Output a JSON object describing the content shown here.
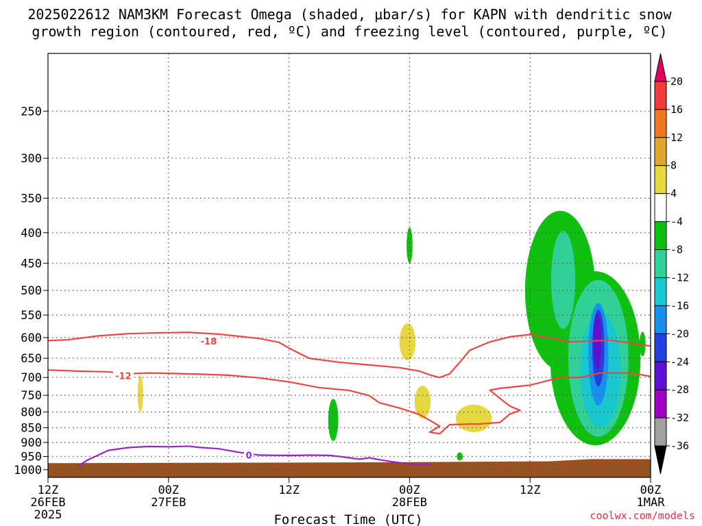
{
  "title_line1": "2025022612 NAM3KM Forecast Omega (shaded, μbar/s) for KAPN with dendritic snow",
  "title_line2": "growth region (contoured, red, ºC) and freezing level (contoured, purple, ºC)",
  "credit": "coolwx.com/models",
  "chart_data": {
    "type": "time-height cross section",
    "xlabel": "Forecast Time (UTC)",
    "x_ticks": [
      {
        "lines": [
          "12Z",
          "26FEB",
          "2025"
        ],
        "hour": 0
      },
      {
        "lines": [
          "00Z",
          "27FEB"
        ],
        "hour": 12
      },
      {
        "lines": [
          "12Z"
        ],
        "hour": 24
      },
      {
        "lines": [
          "00Z",
          "28FEB"
        ],
        "hour": 36
      },
      {
        "lines": [
          "12Z"
        ],
        "hour": 48
      },
      {
        "lines": [
          "00Z",
          "1MAR"
        ],
        "hour": 60
      }
    ],
    "xlim": [
      0,
      60
    ],
    "ylabel": "",
    "y_ticks": [
      250,
      300,
      350,
      400,
      450,
      500,
      550,
      600,
      650,
      700,
      750,
      800,
      850,
      900,
      950,
      1000
    ],
    "ylim": [
      1030,
      200
    ],
    "grid": true,
    "colorbar": {
      "labels": [
        "20",
        "16",
        "12",
        "8",
        "4",
        "-4",
        "-8",
        "-12",
        "-16",
        "-20",
        "-24",
        "-28",
        "-32",
        "-36"
      ],
      "colors": [
        "#e0005e",
        "#f03c3c",
        "#f07820",
        "#e0a830",
        "#e8d840",
        "#ffffff",
        "#10c010",
        "#30d098",
        "#18c8d0",
        "#1890f0",
        "#2040e0",
        "#6010d0",
        "#a000c0",
        "#a0a0a0",
        "#000000"
      ]
    },
    "colors": {
      "dgz": "#ee4444",
      "freezing": "#9922cc",
      "terrain": "#99511f"
    },
    "contours": [
      {
        "name": "dgz_-18",
        "label": "-18",
        "color": "#ee4444",
        "points": [
          [
            0,
            607
          ],
          [
            2,
            605
          ],
          [
            5,
            596
          ],
          [
            8,
            591
          ],
          [
            11,
            589
          ],
          [
            14,
            588
          ],
          [
            17,
            592
          ],
          [
            19,
            597
          ],
          [
            21,
            602
          ],
          [
            23,
            611
          ],
          [
            24,
            625
          ],
          [
            26,
            650
          ],
          [
            29,
            660
          ],
          [
            32,
            667
          ],
          [
            35,
            674
          ],
          [
            37,
            683
          ],
          [
            38,
            693
          ],
          [
            39,
            700
          ],
          [
            40,
            690
          ],
          [
            41,
            660
          ],
          [
            42,
            630
          ],
          [
            44,
            610
          ],
          [
            46,
            598
          ],
          [
            48,
            593
          ],
          [
            49,
            596
          ],
          [
            51,
            605
          ],
          [
            52,
            610
          ],
          [
            54,
            608
          ],
          [
            56,
            606
          ],
          [
            58,
            613
          ],
          [
            60,
            620
          ]
        ],
        "label_at": [
          16,
          608
        ]
      },
      {
        "name": "dgz_-12",
        "label": "-12",
        "color": "#ee4444",
        "points": [
          [
            0,
            680
          ],
          [
            3,
            683
          ],
          [
            6,
            685
          ],
          [
            8,
            690
          ],
          [
            10,
            688
          ],
          [
            12,
            689
          ],
          [
            15,
            691
          ],
          [
            18,
            694
          ],
          [
            21,
            701
          ],
          [
            24,
            712
          ],
          [
            27,
            728
          ],
          [
            30,
            736
          ],
          [
            32,
            751
          ],
          [
            33,
            772
          ],
          [
            35,
            788
          ],
          [
            37,
            808
          ],
          [
            38,
            826
          ],
          [
            39,
            845
          ],
          [
            38,
            865
          ],
          [
            39,
            870
          ],
          [
            40,
            840
          ],
          [
            42,
            838
          ],
          [
            43,
            838
          ],
          [
            45,
            833
          ],
          [
            46,
            806
          ],
          [
            47,
            795
          ],
          [
            46,
            782
          ],
          [
            45,
            759
          ],
          [
            44,
            735
          ],
          [
            45,
            730
          ],
          [
            48,
            721
          ],
          [
            51,
            700
          ],
          [
            53,
            700
          ],
          [
            55,
            688
          ],
          [
            58,
            688
          ],
          [
            60,
            697
          ]
        ],
        "label_at": [
          7.5,
          695
        ]
      },
      {
        "name": "freezing_0",
        "label": "0",
        "color": "#9922cc",
        "points": [
          [
            3,
            985
          ],
          [
            4,
            962
          ],
          [
            6,
            928
          ],
          [
            8,
            918
          ],
          [
            10,
            914
          ],
          [
            12,
            915
          ],
          [
            14,
            913
          ],
          [
            15,
            917
          ],
          [
            17,
            922
          ],
          [
            19,
            935
          ],
          [
            21,
            945
          ],
          [
            23,
            946
          ],
          [
            25,
            946
          ],
          [
            26,
            945
          ],
          [
            28,
            946
          ],
          [
            29,
            950
          ],
          [
            31,
            960
          ],
          [
            32,
            955
          ],
          [
            33,
            962
          ],
          [
            34,
            968
          ],
          [
            36,
            978
          ],
          [
            38,
            980
          ]
        ],
        "label_at": [
          20,
          945
        ]
      }
    ],
    "omega_blobs": [
      {
        "value": "4 to 8",
        "color": "#e8d840",
        "center": [
          9.2,
          745
        ],
        "extent": [
          0.2,
          55
        ]
      },
      {
        "value": "4 to 8",
        "color": "#e8d840",
        "center": [
          35.8,
          610
        ],
        "extent": [
          0.8,
          45
        ]
      },
      {
        "value": "4 to 8",
        "color": "#e8d840",
        "center": [
          37.3,
          770
        ],
        "extent": [
          0.8,
          50
        ]
      },
      {
        "value": "4 to 8",
        "color": "#e8d840",
        "center": [
          42.4,
          820
        ],
        "extent": [
          1.8,
          45
        ]
      },
      {
        "value": "-4 to -8",
        "color": "#10c010",
        "center": [
          36.0,
          420
        ],
        "extent": [
          0.3,
          30
        ]
      },
      {
        "value": "-4 to -8",
        "color": "#10c010",
        "center": [
          28.4,
          825
        ],
        "extent": [
          0.5,
          70
        ]
      },
      {
        "value": "-4 to -8",
        "color": "#10c010",
        "center": [
          41.0,
          950
        ],
        "extent": [
          0.3,
          15
        ]
      },
      {
        "value": "-4 to -8",
        "color": "#10c010",
        "center": [
          59.2,
          615
        ],
        "extent": [
          0.3,
          30
        ]
      },
      {
        "value": "-4 to -8",
        "color": "#10c010",
        "center": [
          51.0,
          500
        ],
        "extent": [
          3.5,
          180
        ]
      },
      {
        "value": "-4 to -8",
        "color": "#10c010",
        "center": [
          54.5,
          650
        ],
        "extent": [
          4.5,
          260
        ]
      },
      {
        "value": "-8 to -12",
        "color": "#30d098",
        "center": [
          54.8,
          650
        ],
        "extent": [
          3.0,
          230
        ]
      },
      {
        "value": "-8 to -12",
        "color": "#30d098",
        "center": [
          51.3,
          480
        ],
        "extent": [
          1.2,
          100
        ]
      },
      {
        "value": "-12 to -16",
        "color": "#18c8d0",
        "center": [
          55.0,
          680
        ],
        "extent": [
          2.0,
          170
        ]
      },
      {
        "value": "-16 to -20",
        "color": "#1890f0",
        "center": [
          54.8,
          640
        ],
        "extent": [
          1.0,
          140
        ]
      },
      {
        "value": "-20 to -24",
        "color": "#2040e0",
        "center": [
          54.8,
          625
        ],
        "extent": [
          0.6,
          100
        ]
      },
      {
        "value": "-24 to -28",
        "color": "#6010d0",
        "center": [
          54.7,
          610
        ],
        "extent": [
          0.4,
          70
        ]
      }
    ],
    "terrain": {
      "color": "#99511f",
      "surface_pressure": [
        [
          0,
          975
        ],
        [
          30,
          972
        ],
        [
          50,
          968
        ],
        [
          54,
          960
        ],
        [
          60,
          960
        ]
      ]
    }
  }
}
